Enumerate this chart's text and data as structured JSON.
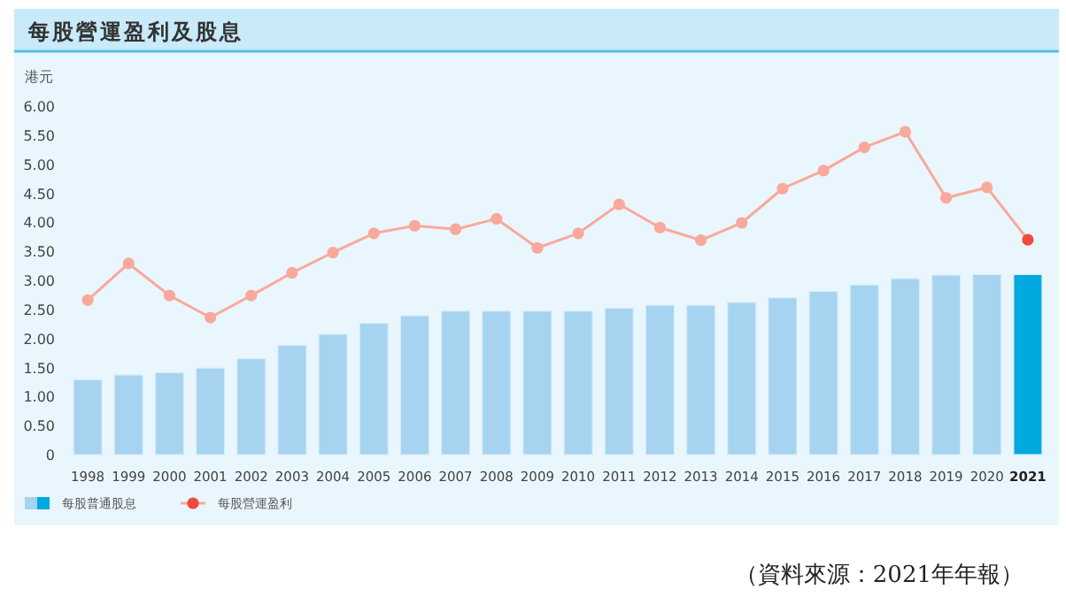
{
  "chart_data": {
    "type": "bar",
    "title": "每股營運盈利及股息",
    "ylabel": "港元",
    "categories": [
      "1998",
      "1999",
      "2000",
      "2001",
      "2002",
      "2003",
      "2004",
      "2005",
      "2006",
      "2007",
      "2008",
      "2009",
      "2010",
      "2011",
      "2012",
      "2013",
      "2014",
      "2015",
      "2016",
      "2017",
      "2018",
      "2019",
      "2020",
      "2021"
    ],
    "series": [
      {
        "name": "每股普通股息",
        "color": "#a5d3f0",
        "colors": [
          "#a5d3f0",
          "#a5d3f0",
          "#a5d3f0",
          "#a5d3f0",
          "#a5d3f0",
          "#a5d3f0",
          "#a5d3f0",
          "#a5d3f0",
          "#a5d3f0",
          "#a5d3f0",
          "#a5d3f0",
          "#a5d3f0",
          "#a5d3f0",
          "#a5d3f0",
          "#a5d3f0",
          "#a5d3f0",
          "#a5d3f0",
          "#a5d3f0",
          "#a5d3f0",
          "#a5d3f0",
          "#a5d3f0",
          "#a5d3f0",
          "#a5d3f0",
          "#00a9e0"
        ],
        "values": [
          1.29,
          1.37,
          1.41,
          1.49,
          1.65,
          1.88,
          2.07,
          2.26,
          2.39,
          2.47,
          2.47,
          2.47,
          2.47,
          2.52,
          2.57,
          2.57,
          2.62,
          2.7,
          2.81,
          2.92,
          3.03,
          3.09,
          3.1,
          3.1
        ]
      },
      {
        "name": "每股營運盈利",
        "type": "line",
        "marker": "circle",
        "color": "#f9a99b",
        "colors": [
          "#f9a99b",
          "#f9a99b",
          "#f9a99b",
          "#f9a99b",
          "#f9a99b",
          "#f9a99b",
          "#f9a99b",
          "#f9a99b",
          "#f9a99b",
          "#f9a99b",
          "#f9a99b",
          "#f9a99b",
          "#f9a99b",
          "#f9a99b",
          "#f9a99b",
          "#f9a99b",
          "#f9a99b",
          "#f9a99b",
          "#f9a99b",
          "#f9a99b",
          "#f9a99b",
          "#f9a99b",
          "#f9a99b",
          "#f04a3e"
        ],
        "values": [
          2.66,
          3.29,
          2.74,
          2.36,
          2.74,
          3.13,
          3.48,
          3.81,
          3.94,
          3.88,
          4.06,
          3.56,
          3.81,
          4.31,
          3.91,
          3.69,
          3.99,
          4.58,
          4.89,
          5.29,
          5.56,
          4.42,
          4.6,
          3.7
        ]
      }
    ],
    "ylim": [
      0,
      6
    ],
    "yticks": [
      0,
      {
        "value": 0.5,
        "label": "0.50"
      },
      {
        "value": 1,
        "label": "1.00"
      },
      {
        "value": 1.5,
        "label": "1.50"
      },
      {
        "value": 2,
        "label": "2.00"
      },
      {
        "value": 2.5,
        "label": "2.50"
      },
      {
        "value": 3,
        "label": "3.00"
      },
      {
        "value": 3.5,
        "label": "3.50"
      },
      {
        "value": 4,
        "label": "4.00"
      },
      {
        "value": 4.5,
        "label": "4.50"
      },
      {
        "value": 5,
        "label": "5.00"
      },
      {
        "value": 5.5,
        "label": "5.50"
      },
      {
        "value": 6,
        "label": "6.00"
      }
    ],
    "grid": false,
    "legend": "bottom left",
    "annotations": [
      "（資料來源：2021年年報）"
    ]
  }
}
